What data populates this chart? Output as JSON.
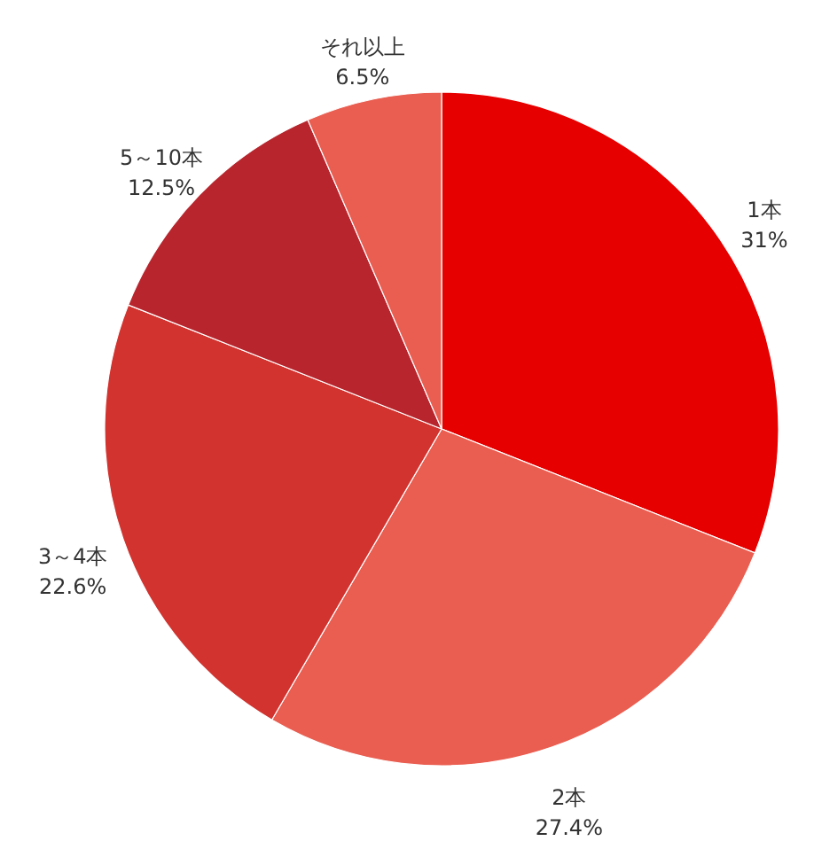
{
  "chart_data": {
    "type": "pie",
    "categories": [
      "1本",
      "2本",
      "3～4本",
      "5～10本",
      "それ以上"
    ],
    "values": [
      31,
      27.4,
      22.6,
      12.5,
      6.5
    ],
    "colors": [
      "#e60000",
      "#ea5e51",
      "#d2332f",
      "#b8252d",
      "#ea5e51"
    ],
    "value_labels": [
      "31%",
      "27.4%",
      "22.6%",
      "12.5%",
      "6.5%"
    ]
  }
}
